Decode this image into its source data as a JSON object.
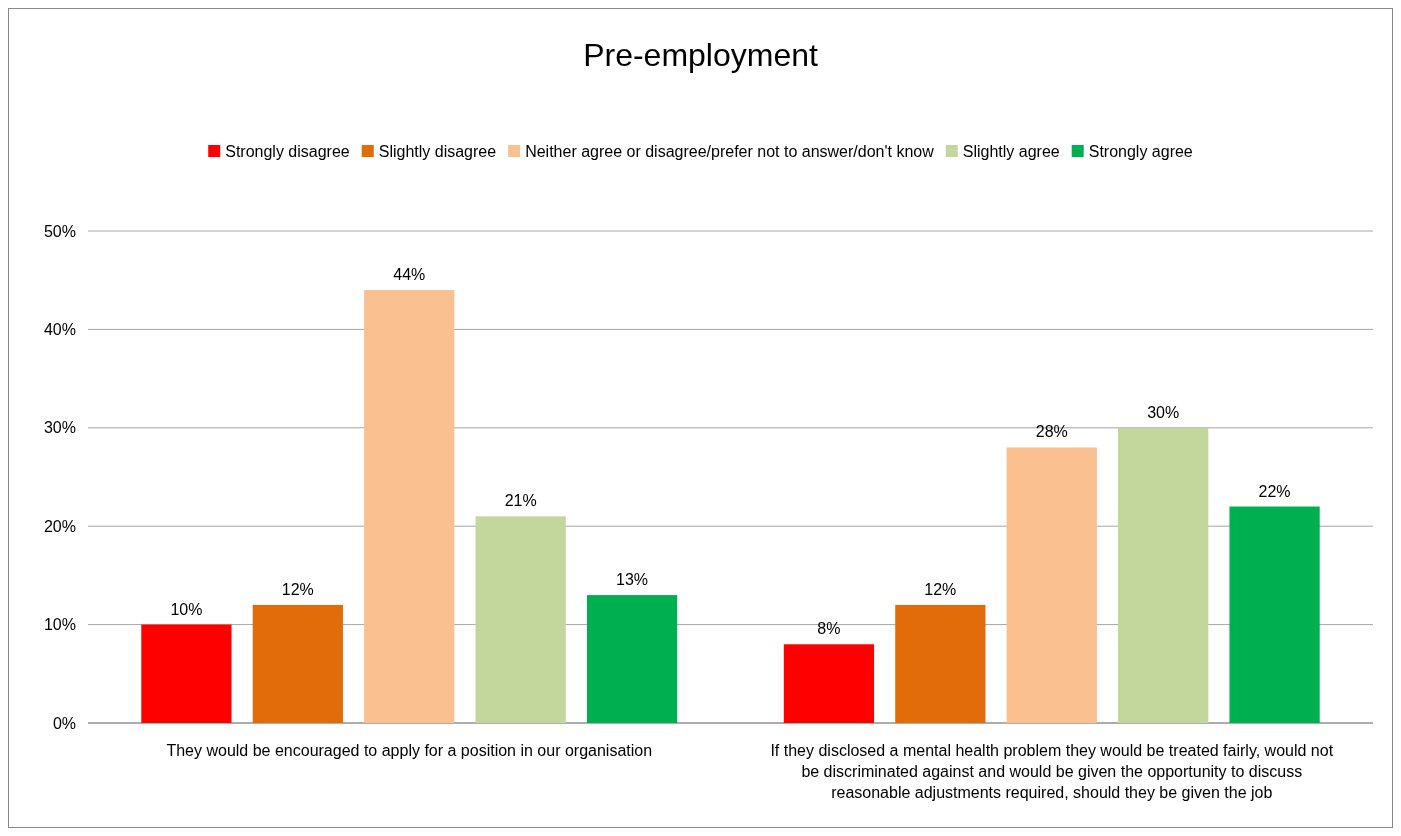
{
  "chart_data": {
    "type": "bar",
    "title": "Pre-employment",
    "categories": [
      "They would be encouraged to apply for a position in our organisation",
      "If they disclosed a mental health problem they would be treated fairly, would not be discriminated against and would be given the opportunity to discuss reasonable adjustments required, should they be given the job"
    ],
    "series": [
      {
        "name": "Strongly disagree",
        "color": "#ff0000",
        "values": [
          10,
          8
        ],
        "value_labels": [
          "10%",
          "8%"
        ]
      },
      {
        "name": "Slightly disagree",
        "color": "#e36c0a",
        "values": [
          12,
          12
        ],
        "value_labels": [
          "12%",
          "12%"
        ]
      },
      {
        "name": "Neither agree or disagree/prefer not to answer/don't know",
        "color": "#fac090",
        "values": [
          44,
          28
        ],
        "value_labels": [
          "44%",
          "28%"
        ]
      },
      {
        "name": "Slightly agree",
        "color": "#c3d69b",
        "values": [
          21,
          30
        ],
        "value_labels": [
          "21%",
          "30%"
        ]
      },
      {
        "name": "Strongly agree",
        "color": "#00b050",
        "values": [
          13,
          22
        ],
        "value_labels": [
          "13%",
          "22%"
        ]
      }
    ],
    "ylim": [
      0,
      50
    ],
    "yticks": [
      {
        "value": 0,
        "label": "0%"
      },
      {
        "value": 10,
        "label": "10%"
      },
      {
        "value": 20,
        "label": "20%"
      },
      {
        "value": 30,
        "label": "30%"
      },
      {
        "value": 40,
        "label": "40%"
      },
      {
        "value": 50,
        "label": "50%"
      }
    ],
    "grid": "y",
    "legend": "top"
  }
}
